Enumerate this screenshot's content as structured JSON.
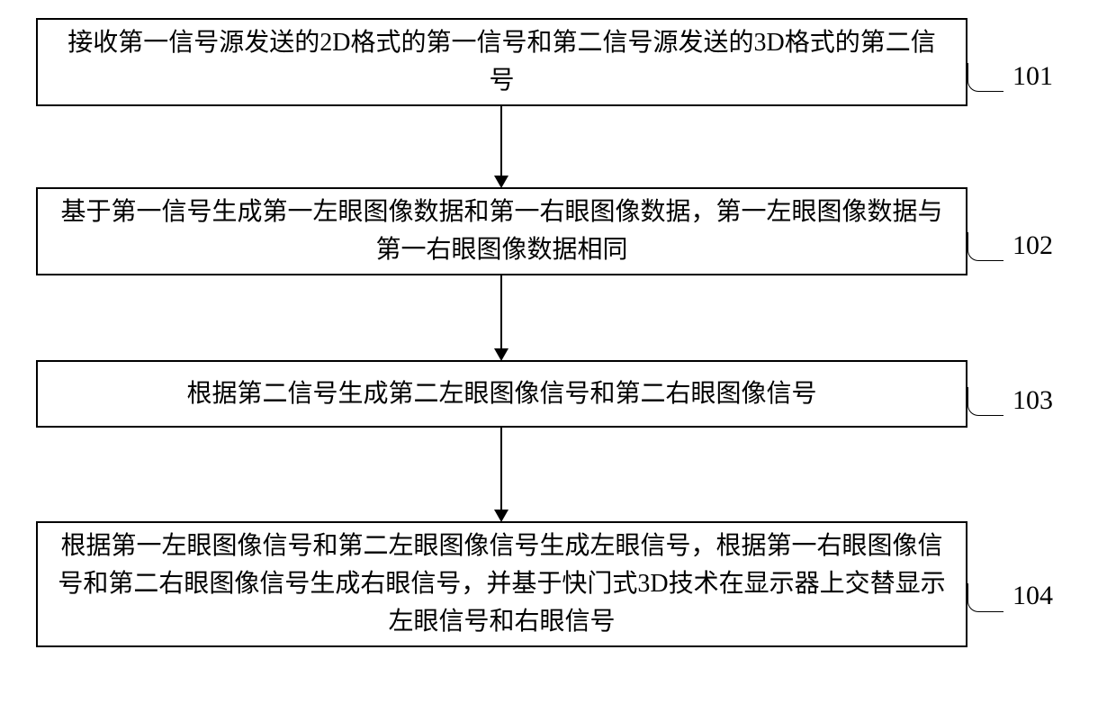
{
  "flowchart": {
    "type": "flowchart",
    "background_color": "#ffffff",
    "box_border_color": "#000000",
    "box_border_width": 2,
    "text_color": "#000000",
    "font_family": "SimSun",
    "font_size": 28,
    "label_font_size": 30,
    "arrow_color": "#000000",
    "steps": [
      {
        "id": "101",
        "text": "接收第一信号源发送的2D格式的第一信号和第二信号源发送的3D格式的第二信号",
        "label": "101"
      },
      {
        "id": "102",
        "text": "基于第一信号生成第一左眼图像数据和第一右眼图像数据，第一左眼图像数据与第一右眼图像数据相同",
        "label": "102"
      },
      {
        "id": "103",
        "text": "根据第二信号生成第二左眼图像信号和第二右眼图像信号",
        "label": "103"
      },
      {
        "id": "104",
        "text": "根据第一左眼图像信号和第二左眼图像信号生成左眼信号，根据第一右眼图像信号和第二右眼图像信号生成右眼信号，并基于快门式3D技术在显示器上交替显示左眼信号和右眼信号",
        "label": "104"
      }
    ]
  }
}
